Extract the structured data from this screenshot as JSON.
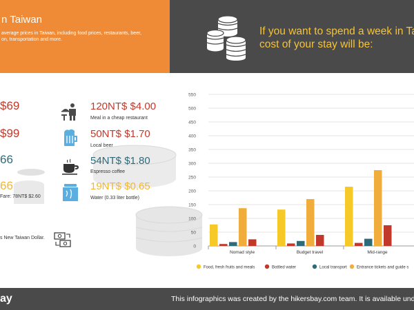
{
  "header": {
    "title": "n Taiwan",
    "subtitle_line1": "average prices in Taiwan, including food prices, restaurants, beer,",
    "subtitle_line2": "on, transportation and more.",
    "week_line1": "If you want to spend a week in Ta",
    "week_line2": "cost of your stay will be:"
  },
  "left_prices": [
    {
      "text": "$69",
      "color": "#c0392b"
    },
    {
      "text": "$99",
      "color": "#c0392b"
    },
    {
      "text": "66",
      "color": "#2e6a78"
    },
    {
      "text": "66",
      "color": "#f2b632"
    }
  ],
  "left_fare_note": "Fare: 78NT$ $2.60",
  "currency_note": "s New Taiwan Dollar.",
  "prices": [
    {
      "price": "120NT$ $4.00",
      "label": "Meal in a cheap restaurant",
      "color": "#c0392b",
      "icon": "waiter-icon"
    },
    {
      "price": "50NT$ $1.70",
      "label": "Local beer",
      "color": "#c0392b",
      "icon": "beer-mug-icon"
    },
    {
      "price": "54NT$ $1.80",
      "label": "Espresso coffee",
      "color": "#2e6a78",
      "icon": "coffee-cup-icon"
    },
    {
      "price": "19NT$ $0.65",
      "label": "Water (0.33 liter bottle)",
      "color": "#f2b632",
      "icon": "water-bottle-icon"
    }
  ],
  "chart_data": {
    "type": "bar",
    "categories": [
      "Nomad style",
      "Budget travel",
      "Mid-range"
    ],
    "series": [
      {
        "name": "Food, fresh fruits and meals",
        "color": "#f6c928",
        "values": [
          78,
          132,
          215
        ]
      },
      {
        "name": "Bottled water",
        "color": "#c0392b",
        "values": [
          7,
          9,
          11
        ]
      },
      {
        "name": "Local transport",
        "color": "#2e6a78",
        "values": [
          14,
          18,
          26
        ]
      },
      {
        "name": "Entrance tickets and guide s",
        "color": "#f0ad3c",
        "values": [
          137,
          170,
          275
        ]
      },
      {
        "name": "",
        "color": "#c0392b",
        "values": [
          24,
          40,
          75
        ]
      }
    ],
    "ylim": [
      0,
      550
    ],
    "yticks": [
      0,
      50,
      100,
      150,
      200,
      250,
      300,
      350,
      400,
      450,
      500,
      550
    ],
    "grid": true,
    "legend_position": "bottom"
  },
  "footer": {
    "brand": "ay",
    "text": "This infographics was created by the hikersbay.com team. It is available under"
  }
}
